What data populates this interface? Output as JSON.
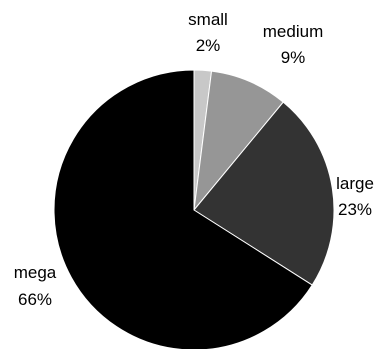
{
  "chart_data": {
    "type": "pie",
    "title": "",
    "start_angle_deg": 0,
    "direction": "clockwise",
    "legend": "none",
    "slices": [
      {
        "label": "small",
        "value": 2,
        "value_label": "2%",
        "color": "#c8c8c8"
      },
      {
        "label": "medium",
        "value": 9,
        "value_label": "9%",
        "color": "#969696"
      },
      {
        "label": "large",
        "value": 23,
        "value_label": "23%",
        "color": "#333333"
      },
      {
        "label": "mega",
        "value": 66,
        "value_label": "66%",
        "color": "#000000"
      }
    ]
  }
}
